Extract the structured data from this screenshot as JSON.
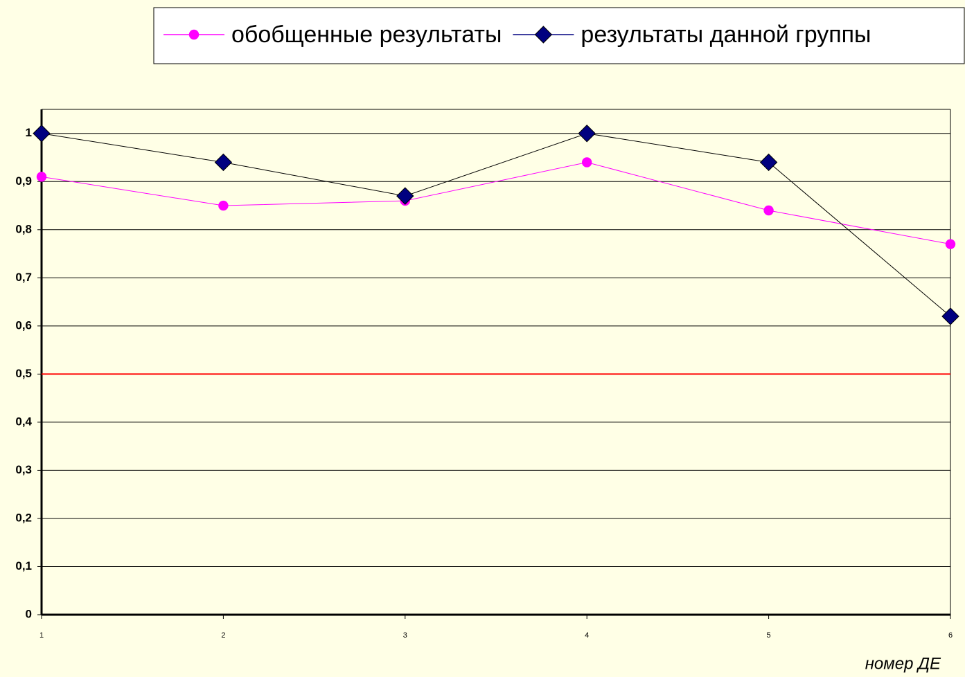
{
  "chart_data": {
    "type": "line",
    "x_label": "номер ДЕ",
    "x": [
      1,
      2,
      3,
      4,
      5,
      6
    ],
    "xlim": [
      1,
      6
    ],
    "xticks": [
      1,
      2,
      3,
      4,
      5,
      6
    ],
    "ylim": [
      0,
      1.05
    ],
    "yticks": [
      0,
      {
        "value": 0.1,
        "label": "0,1"
      },
      {
        "value": 0.2,
        "label": "0,2"
      },
      {
        "value": 0.3,
        "label": "0,3"
      },
      {
        "value": 0.4,
        "label": "0,4"
      },
      {
        "value": 0.5,
        "label": "0,5"
      },
      {
        "value": 0.6,
        "label": "0,6"
      },
      {
        "value": 0.7,
        "label": "0,7"
      },
      {
        "value": 0.8,
        "label": "0,8"
      },
      {
        "value": 0.9,
        "label": "0,9"
      },
      1
    ],
    "grid": true,
    "hline": {
      "value": 0.5,
      "color": "#ff0000"
    },
    "series": [
      {
        "name": "обобщенные результаты",
        "color": "#ff00ff",
        "marker": "circle",
        "values": [
          0.91,
          0.85,
          0.86,
          0.94,
          0.84,
          0.77
        ]
      },
      {
        "name": "результаты данной группы",
        "color": "#000080",
        "marker": "diamond",
        "values": [
          1,
          0.94,
          0.87,
          1,
          0.94,
          0.62
        ]
      }
    ]
  }
}
